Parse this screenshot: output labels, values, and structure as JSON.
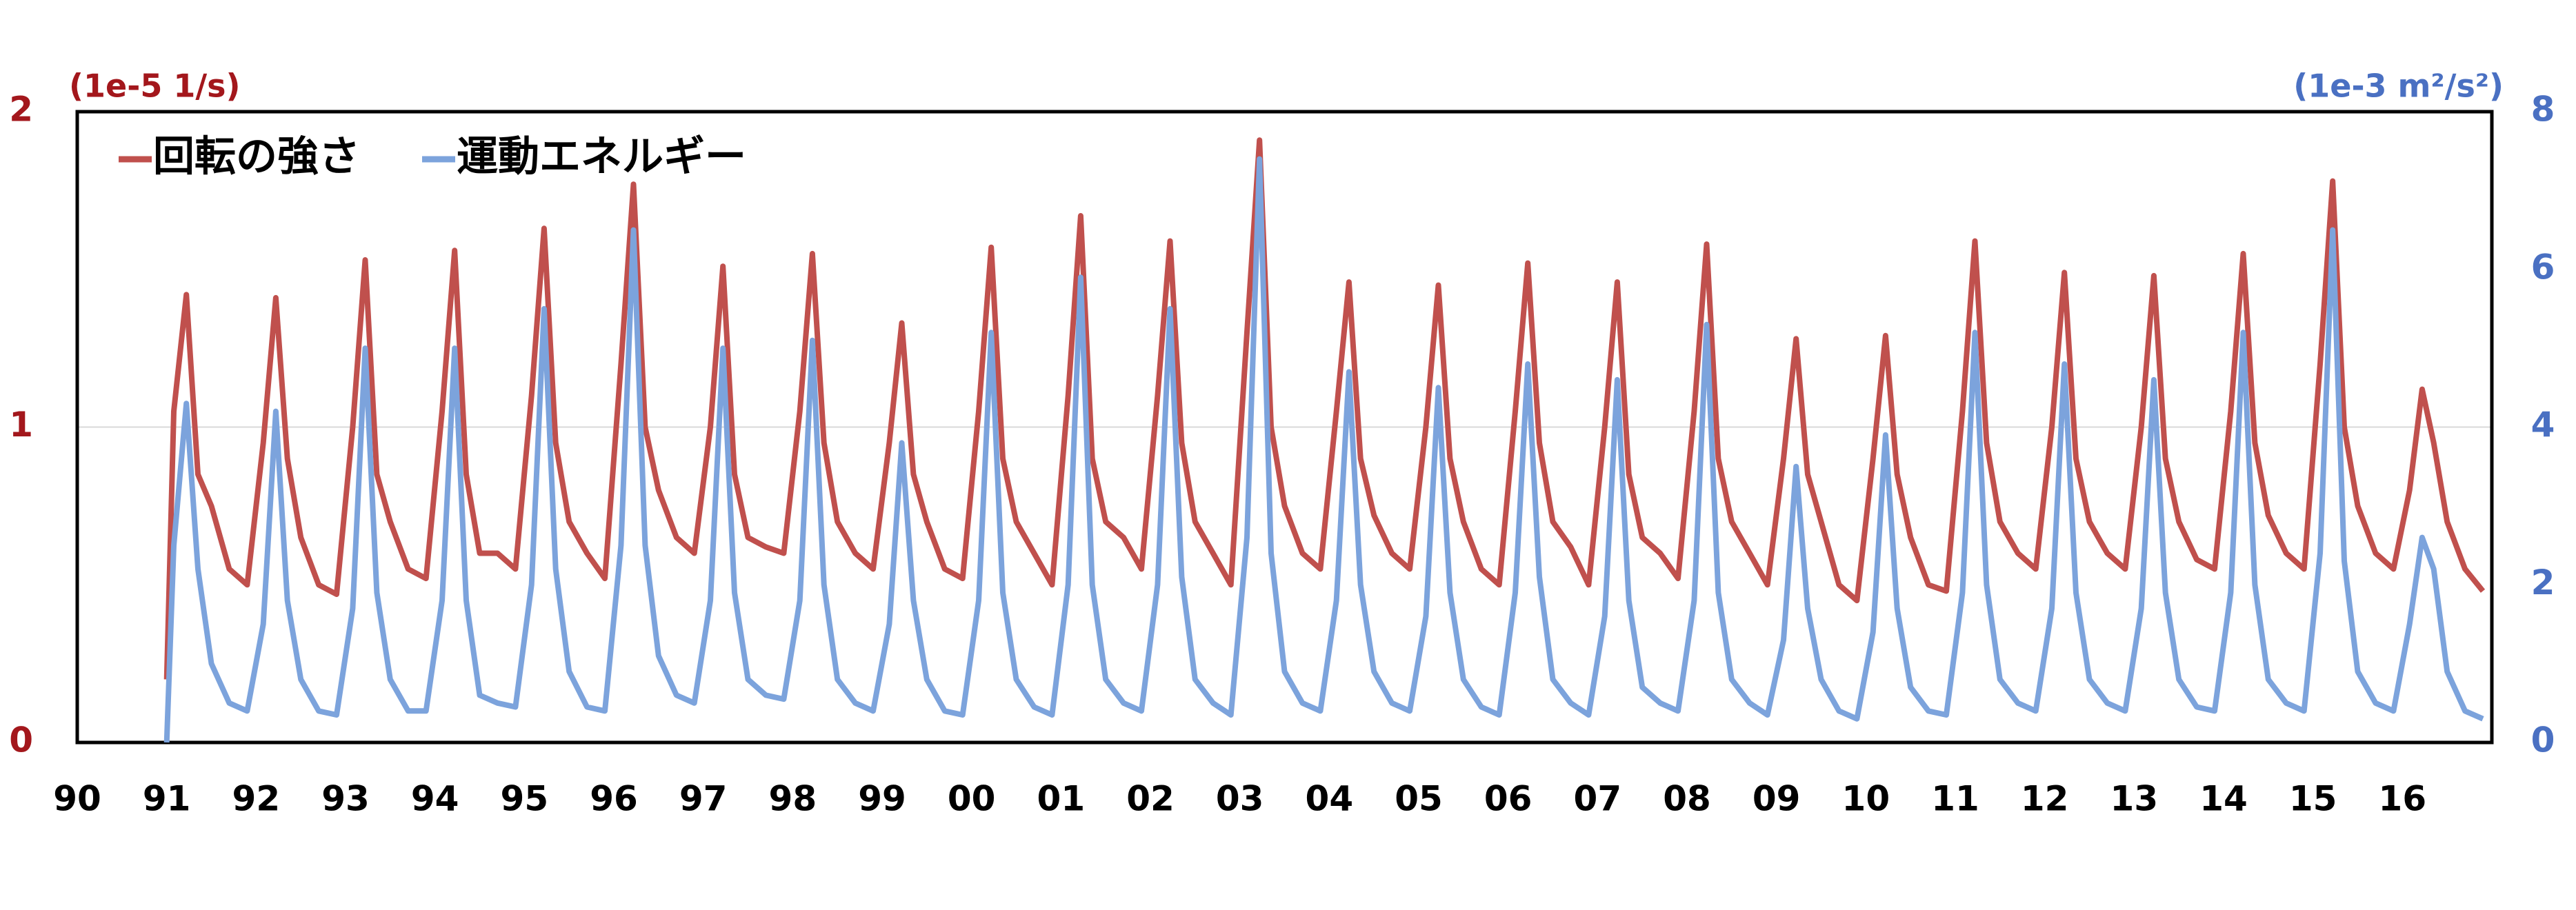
{
  "chart_data": {
    "type": "line",
    "legend": "upper left",
    "grid": true,
    "y_unit_label": "(1e-5 1/s)",
    "y2_unit_label": "(1e-3 m²/s²)",
    "y_label_color": "#a3171c",
    "y2_label_color": "#4a70c2",
    "xlim": [
      1990,
      2017
    ],
    "xticks": [
      {
        "value": 1990,
        "label": "90"
      },
      {
        "value": 1991,
        "label": "91"
      },
      {
        "value": 1992,
        "label": "92"
      },
      {
        "value": 1993,
        "label": "93"
      },
      {
        "value": 1994,
        "label": "94"
      },
      {
        "value": 1995,
        "label": "95"
      },
      {
        "value": 1996,
        "label": "96"
      },
      {
        "value": 1997,
        "label": "97"
      },
      {
        "value": 1998,
        "label": "98"
      },
      {
        "value": 1999,
        "label": "99"
      },
      {
        "value": 2000,
        "label": "00"
      },
      {
        "value": 2001,
        "label": "01"
      },
      {
        "value": 2002,
        "label": "02"
      },
      {
        "value": 2003,
        "label": "03"
      },
      {
        "value": 2004,
        "label": "04"
      },
      {
        "value": 2005,
        "label": "05"
      },
      {
        "value": 2006,
        "label": "06"
      },
      {
        "value": 2007,
        "label": "07"
      },
      {
        "value": 2008,
        "label": "08"
      },
      {
        "value": 2009,
        "label": "09"
      },
      {
        "value": 2010,
        "label": "10"
      },
      {
        "value": 2011,
        "label": "11"
      },
      {
        "value": 2012,
        "label": "12"
      },
      {
        "value": 2013,
        "label": "13"
      },
      {
        "value": 2014,
        "label": "14"
      },
      {
        "value": 2015,
        "label": "15"
      },
      {
        "value": 2016,
        "label": "16"
      }
    ],
    "ylim": [
      0,
      2
    ],
    "yticks": [
      0,
      1,
      2
    ],
    "y2lim": [
      0,
      8
    ],
    "y2ticks": [
      0,
      2,
      4,
      6,
      8
    ],
    "x": [
      1991.0,
      1991.08,
      1991.22,
      1991.35,
      1991.5,
      1991.7,
      1991.9,
      1992.08,
      1992.22,
      1992.35,
      1992.5,
      1992.7,
      1992.9,
      1993.08,
      1993.22,
      1993.35,
      1993.5,
      1993.7,
      1993.9,
      1994.08,
      1994.22,
      1994.35,
      1994.5,
      1994.7,
      1994.9,
      1995.08,
      1995.22,
      1995.35,
      1995.5,
      1995.7,
      1995.9,
      1996.08,
      1996.22,
      1996.35,
      1996.5,
      1996.7,
      1996.9,
      1997.08,
      1997.22,
      1997.35,
      1997.5,
      1997.7,
      1997.9,
      1998.08,
      1998.22,
      1998.35,
      1998.5,
      1998.7,
      1998.9,
      1999.08,
      1999.22,
      1999.35,
      1999.5,
      1999.7,
      1999.9,
      2000.08,
      2000.22,
      2000.35,
      2000.5,
      2000.7,
      2000.9,
      2001.08,
      2001.22,
      2001.35,
      2001.5,
      2001.7,
      2001.9,
      2002.08,
      2002.22,
      2002.35,
      2002.5,
      2002.7,
      2002.9,
      2003.08,
      2003.22,
      2003.35,
      2003.5,
      2003.7,
      2003.9,
      2004.08,
      2004.22,
      2004.35,
      2004.5,
      2004.7,
      2004.9,
      2005.08,
      2005.22,
      2005.35,
      2005.5,
      2005.7,
      2005.9,
      2006.08,
      2006.22,
      2006.35,
      2006.5,
      2006.7,
      2006.9,
      2007.08,
      2007.22,
      2007.35,
      2007.5,
      2007.7,
      2007.9,
      2008.08,
      2008.22,
      2008.35,
      2008.5,
      2008.7,
      2008.9,
      2009.08,
      2009.22,
      2009.35,
      2009.5,
      2009.7,
      2009.9,
      2010.08,
      2010.22,
      2010.35,
      2010.5,
      2010.7,
      2010.9,
      2011.08,
      2011.22,
      2011.35,
      2011.5,
      2011.7,
      2011.9,
      2012.08,
      2012.22,
      2012.35,
      2012.5,
      2012.7,
      2012.9,
      2013.08,
      2013.22,
      2013.35,
      2013.5,
      2013.7,
      2013.9,
      2014.08,
      2014.22,
      2014.35,
      2014.5,
      2014.7,
      2014.9,
      2015.08,
      2015.22,
      2015.35,
      2015.5,
      2015.7,
      2015.9,
      2016.08,
      2016.22,
      2016.35,
      2016.5,
      2016.7,
      2016.9
    ],
    "series": [
      {
        "name": "回転の強さ",
        "color": "#c0504d",
        "axis": "y",
        "values": [
          0.2,
          1.05,
          1.42,
          0.85,
          0.75,
          0.55,
          0.5,
          0.95,
          1.41,
          0.9,
          0.65,
          0.5,
          0.47,
          1.0,
          1.53,
          0.85,
          0.7,
          0.55,
          0.52,
          1.05,
          1.56,
          0.85,
          0.6,
          0.6,
          0.55,
          1.1,
          1.63,
          0.95,
          0.7,
          0.6,
          0.52,
          1.2,
          1.77,
          1.0,
          0.8,
          0.65,
          0.6,
          1.0,
          1.51,
          0.85,
          0.65,
          0.62,
          0.6,
          1.05,
          1.55,
          0.95,
          0.7,
          0.6,
          0.55,
          0.95,
          1.33,
          0.85,
          0.7,
          0.55,
          0.52,
          1.05,
          1.57,
          0.9,
          0.7,
          0.6,
          0.5,
          1.1,
          1.67,
          0.9,
          0.7,
          0.65,
          0.55,
          1.1,
          1.59,
          0.95,
          0.7,
          0.6,
          0.5,
          1.3,
          1.91,
          1.0,
          0.75,
          0.6,
          0.55,
          1.05,
          1.46,
          0.9,
          0.72,
          0.6,
          0.55,
          1.0,
          1.45,
          0.9,
          0.7,
          0.55,
          0.5,
          1.05,
          1.52,
          0.95,
          0.7,
          0.62,
          0.5,
          1.0,
          1.46,
          0.85,
          0.65,
          0.6,
          0.52,
          1.05,
          1.58,
          0.9,
          0.7,
          0.6,
          0.5,
          0.9,
          1.28,
          0.85,
          0.7,
          0.5,
          0.45,
          0.9,
          1.29,
          0.85,
          0.65,
          0.5,
          0.48,
          1.05,
          1.59,
          0.95,
          0.7,
          0.6,
          0.55,
          1.0,
          1.49,
          0.9,
          0.7,
          0.6,
          0.55,
          1.0,
          1.48,
          0.9,
          0.7,
          0.58,
          0.55,
          1.05,
          1.55,
          0.95,
          0.72,
          0.6,
          0.55,
          1.2,
          1.78,
          1.0,
          0.75,
          0.6,
          0.55,
          0.8,
          1.12,
          0.95,
          0.7,
          0.55,
          0.48
        ]
      },
      {
        "name": "運動エネルギー",
        "color": "#7ca3dc",
        "axis": "y2",
        "values": [
          0,
          2.5,
          4.3,
          2.2,
          1.0,
          0.5,
          0.4,
          1.5,
          4.2,
          1.8,
          0.8,
          0.4,
          0.35,
          1.7,
          5.0,
          1.9,
          0.8,
          0.4,
          0.4,
          1.8,
          5.0,
          1.8,
          0.6,
          0.5,
          0.45,
          2.0,
          5.5,
          2.2,
          0.9,
          0.45,
          0.4,
          2.5,
          6.5,
          2.5,
          1.1,
          0.6,
          0.5,
          1.8,
          5.0,
          1.9,
          0.8,
          0.6,
          0.55,
          1.8,
          5.1,
          2.0,
          0.8,
          0.5,
          0.4,
          1.5,
          3.8,
          1.8,
          0.8,
          0.4,
          0.35,
          1.8,
          5.2,
          1.9,
          0.8,
          0.45,
          0.35,
          2.0,
          5.9,
          2.0,
          0.8,
          0.5,
          0.4,
          2.0,
          5.5,
          2.1,
          0.8,
          0.5,
          0.35,
          2.6,
          7.4,
          2.4,
          0.9,
          0.5,
          0.4,
          1.8,
          4.7,
          2.0,
          0.9,
          0.5,
          0.4,
          1.6,
          4.5,
          1.9,
          0.8,
          0.45,
          0.35,
          1.9,
          4.8,
          2.1,
          0.8,
          0.5,
          0.35,
          1.6,
          4.6,
          1.8,
          0.7,
          0.5,
          0.4,
          1.8,
          5.3,
          1.9,
          0.8,
          0.5,
          0.35,
          1.3,
          3.5,
          1.7,
          0.8,
          0.4,
          0.3,
          1.4,
          3.9,
          1.7,
          0.7,
          0.4,
          0.35,
          1.9,
          5.2,
          2.0,
          0.8,
          0.5,
          0.4,
          1.7,
          4.8,
          1.9,
          0.8,
          0.5,
          0.4,
          1.7,
          4.6,
          1.9,
          0.8,
          0.45,
          0.4,
          1.9,
          5.2,
          2.0,
          0.8,
          0.5,
          0.4,
          2.4,
          6.5,
          2.3,
          0.9,
          0.5,
          0.4,
          1.5,
          2.6,
          2.2,
          0.9,
          0.4,
          0.3
        ]
      }
    ]
  }
}
